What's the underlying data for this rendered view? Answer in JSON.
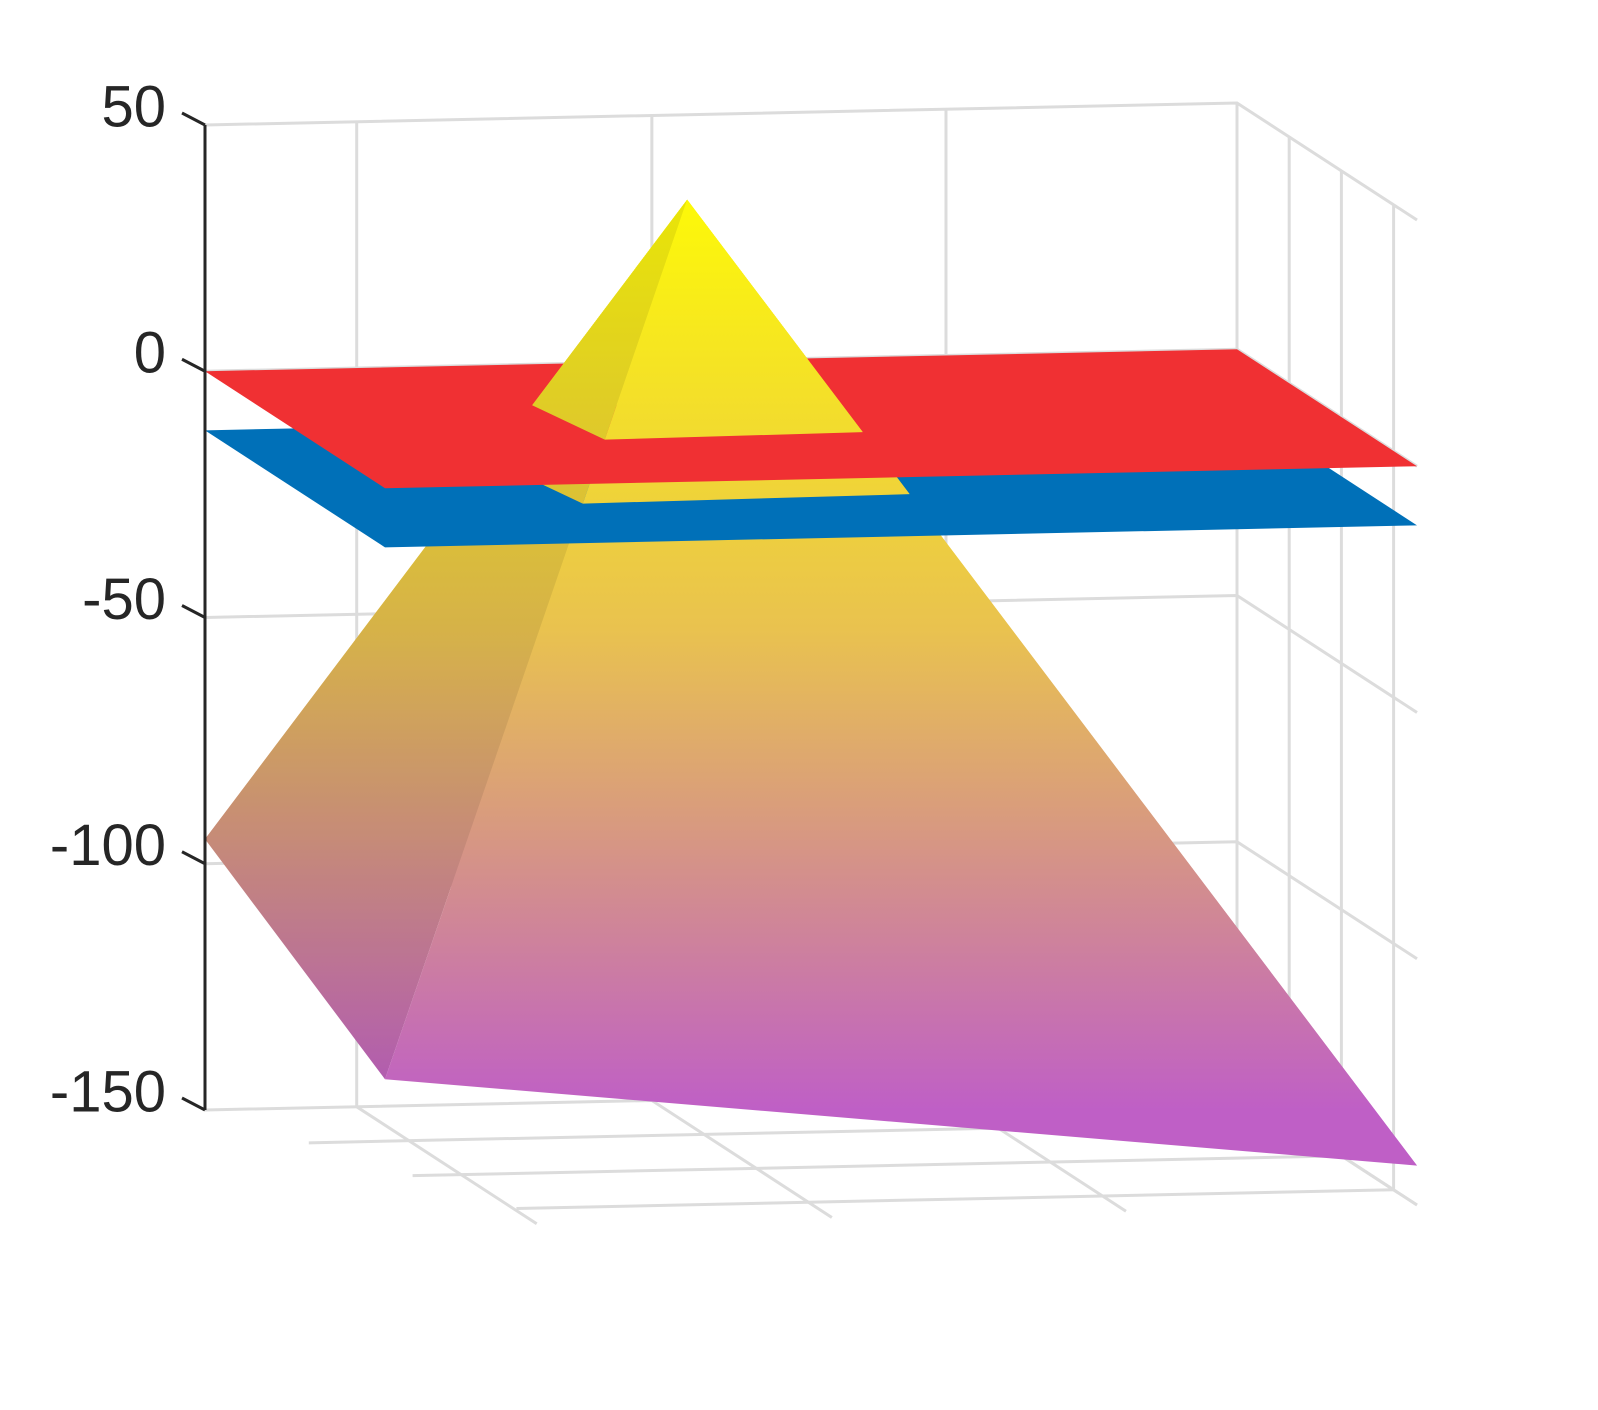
{
  "chart_data": {
    "type": "surface3d",
    "zlim": [
      -150,
      50
    ],
    "zticks": [
      50,
      0,
      -50,
      -100,
      -150
    ],
    "grid": true,
    "surfaces": [
      {
        "kind": "pyramid",
        "peak": 45,
        "corners": [
          -95,
          -140,
          -142,
          -120
        ],
        "colormap": [
          "#bf5fc6",
          "#e9c24f",
          "#ffff00"
        ]
      },
      {
        "kind": "plane",
        "z": -12,
        "color": "#0070b8"
      },
      {
        "kind": "plane",
        "z": 0,
        "color": "#f03033"
      }
    ]
  }
}
